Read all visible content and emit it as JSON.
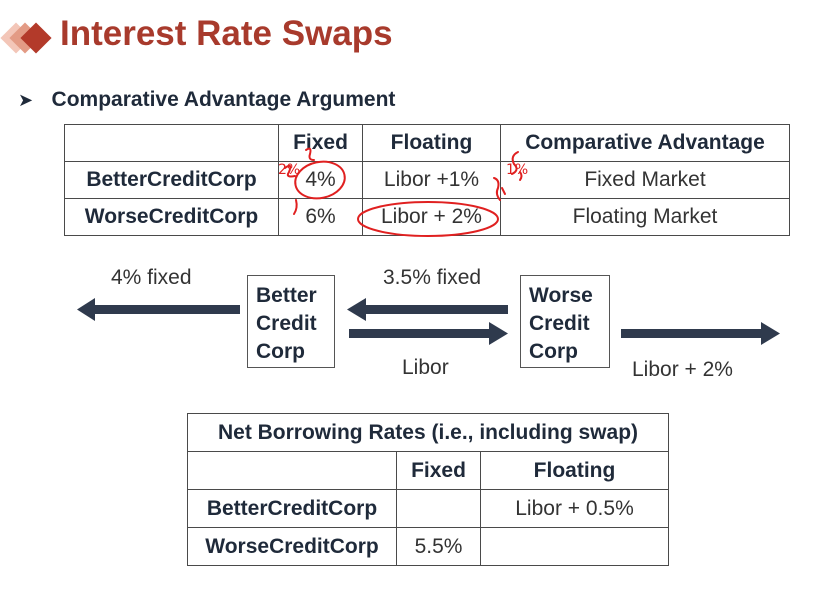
{
  "header": {
    "title": "Interest Rate Swaps",
    "subtitle": "Comparative Advantage Argument"
  },
  "table1": {
    "columns": [
      "",
      "Fixed",
      "Floating",
      "Comparative Advantage"
    ],
    "rows": [
      {
        "label": "BetterCreditCorp",
        "fixed": "4%",
        "floating": "Libor +1%",
        "advantage": "Fixed Market"
      },
      {
        "label": "WorseCreditCorp",
        "fixed": "6%",
        "floating": "Libor + 2%",
        "advantage": "Floating Market"
      }
    ],
    "annotations": {
      "left_mark": "2%",
      "right_mark": "1%"
    }
  },
  "diagram": {
    "better_box": [
      "Better",
      "Credit",
      "Corp"
    ],
    "worse_box": [
      "Worse",
      "Credit",
      "Corp"
    ],
    "flow_left": "4% fixed",
    "flow_top": "3.5% fixed",
    "flow_bottom": "Libor",
    "flow_right": "Libor + 2%"
  },
  "table2": {
    "caption": "Net Borrowing Rates (i.e., including swap)",
    "columns": [
      "",
      "Fixed",
      "Floating"
    ],
    "rows": [
      {
        "label": "BetterCreditCorp",
        "fixed": "",
        "floating": "Libor + 0.5%"
      },
      {
        "label": "WorseCreditCorp",
        "fixed": "5.5%",
        "floating": ""
      }
    ]
  },
  "colors": {
    "title": "#a83a2c",
    "arrows": "#2f3a4d",
    "ink": "#e02020"
  }
}
